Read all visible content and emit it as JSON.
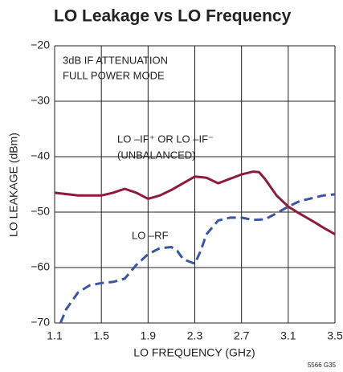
{
  "chart_data": {
    "type": "line",
    "title": "LO Leakage vs LO Frequency",
    "x_label": "LO FREQUENCY (GHz)",
    "y_label": "LO LEAKAGE (dBm)",
    "annotations": [
      "3dB IF ATTENUATION",
      "FULL POWER MODE",
      "(UNBALANCED)",
      "5566 G35"
    ],
    "xlim": [
      1.1,
      3.5
    ],
    "xticks": [
      1.1,
      1.5,
      1.9,
      2.3,
      2.7,
      3.1,
      3.5
    ],
    "ylim": [
      -70,
      -20
    ],
    "yticks": [
      {
        "value": -70,
        "label": "−70"
      },
      {
        "value": -60,
        "label": "−60"
      },
      {
        "value": -50,
        "label": "−50"
      },
      {
        "value": -40,
        "label": "−40"
      },
      {
        "value": -30,
        "label": "−30"
      },
      {
        "value": -20,
        "label": "−20"
      }
    ],
    "grid": true,
    "series": [
      {
        "name": "LO –IF⁺ OR LO –IF⁻",
        "color": "#8c1b3c",
        "style": "solid",
        "x": [
          1.1,
          1.3,
          1.5,
          1.6,
          1.7,
          1.8,
          1.9,
          2.0,
          2.1,
          2.2,
          2.3,
          2.4,
          2.5,
          2.6,
          2.7,
          2.8,
          2.85,
          2.9,
          3.0,
          3.1,
          3.2,
          3.3,
          3.4,
          3.5
        ],
        "values": [
          -46.5,
          -47,
          -47,
          -46.5,
          -45.8,
          -46.5,
          -47.6,
          -47,
          -46,
          -44.8,
          -43.6,
          -43.8,
          -44.8,
          -44,
          -43.2,
          -42.7,
          -42.8,
          -44,
          -47,
          -49,
          -50.3,
          -51.5,
          -52.8,
          -54
        ]
      },
      {
        "name": "LO –RF",
        "color": "#3a55a2",
        "style": "dashed",
        "x": [
          1.15,
          1.2,
          1.3,
          1.4,
          1.5,
          1.6,
          1.7,
          1.8,
          1.9,
          2.0,
          2.1,
          2.15,
          2.2,
          2.3,
          2.35,
          2.4,
          2.5,
          2.6,
          2.7,
          2.8,
          2.9,
          3.0,
          3.1,
          3.2,
          3.3,
          3.4,
          3.5
        ],
        "values": [
          -70,
          -67.5,
          -64.5,
          -63.2,
          -62.8,
          -62.6,
          -62,
          -59.5,
          -57.6,
          -56.5,
          -56.3,
          -57,
          -58.5,
          -59.3,
          -57,
          -54,
          -51.5,
          -51,
          -51,
          -51.4,
          -51.3,
          -50.2,
          -49,
          -48,
          -47.5,
          -47,
          -46.8
        ]
      }
    ]
  }
}
